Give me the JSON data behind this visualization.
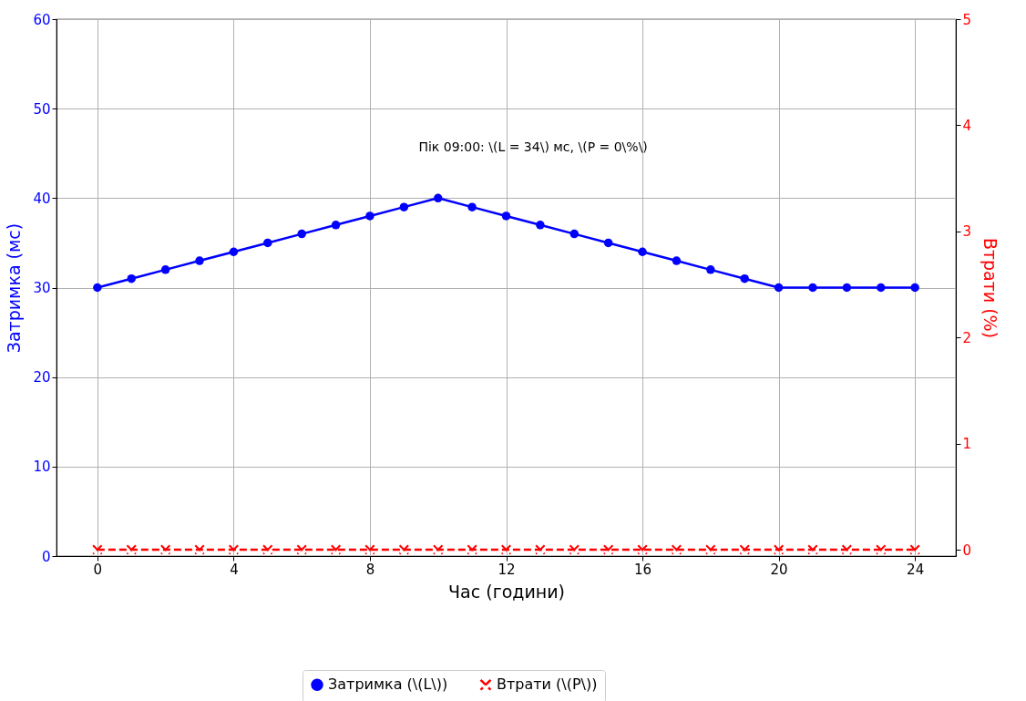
{
  "chart_data": {
    "type": "line",
    "xlabel": "Час (години)",
    "ylabel": "Затримка (мс)",
    "y2label": "Втрати (%)",
    "x": [
      0,
      1,
      2,
      3,
      4,
      5,
      6,
      7,
      8,
      9,
      10,
      11,
      12,
      13,
      14,
      15,
      16,
      17,
      18,
      19,
      20,
      21,
      22,
      23,
      24
    ],
    "series": [
      {
        "name": "Затримка (\\(L\\))",
        "color": "#0000ff",
        "marker": "circle",
        "line_style": "solid",
        "values": [
          30,
          31,
          32,
          33,
          34,
          35,
          36,
          37,
          38,
          39,
          40,
          39,
          38,
          37,
          36,
          35,
          34,
          33,
          32,
          31,
          30,
          30,
          30,
          30,
          30
        ]
      },
      {
        "name": "Втрати (\\(P\\))",
        "color": "#ff0000",
        "marker": "cross",
        "line_style": "dashed",
        "axis": "y2",
        "values": [
          0,
          0,
          0,
          0,
          0,
          0,
          0,
          0,
          0,
          0,
          0,
          0,
          0,
          0,
          0,
          0,
          0,
          0,
          0,
          0,
          0,
          0,
          0,
          0,
          0
        ]
      }
    ],
    "xlim": [
      -1.2,
      25.2
    ],
    "xticks": [
      0,
      4,
      8,
      12,
      16,
      20,
      24
    ],
    "ylim": [
      0,
      60
    ],
    "yticks": [
      0,
      10,
      20,
      30,
      40,
      50,
      60
    ],
    "y2lim": [
      -0.06,
      5
    ],
    "y2ticks": [
      0,
      1,
      2,
      3,
      4,
      5
    ],
    "annotations": [
      "Пік 09:00: \\(L = 34\\) мс, \\(P = 0\\%\\)"
    ],
    "grid": true,
    "legend": "bottom"
  }
}
